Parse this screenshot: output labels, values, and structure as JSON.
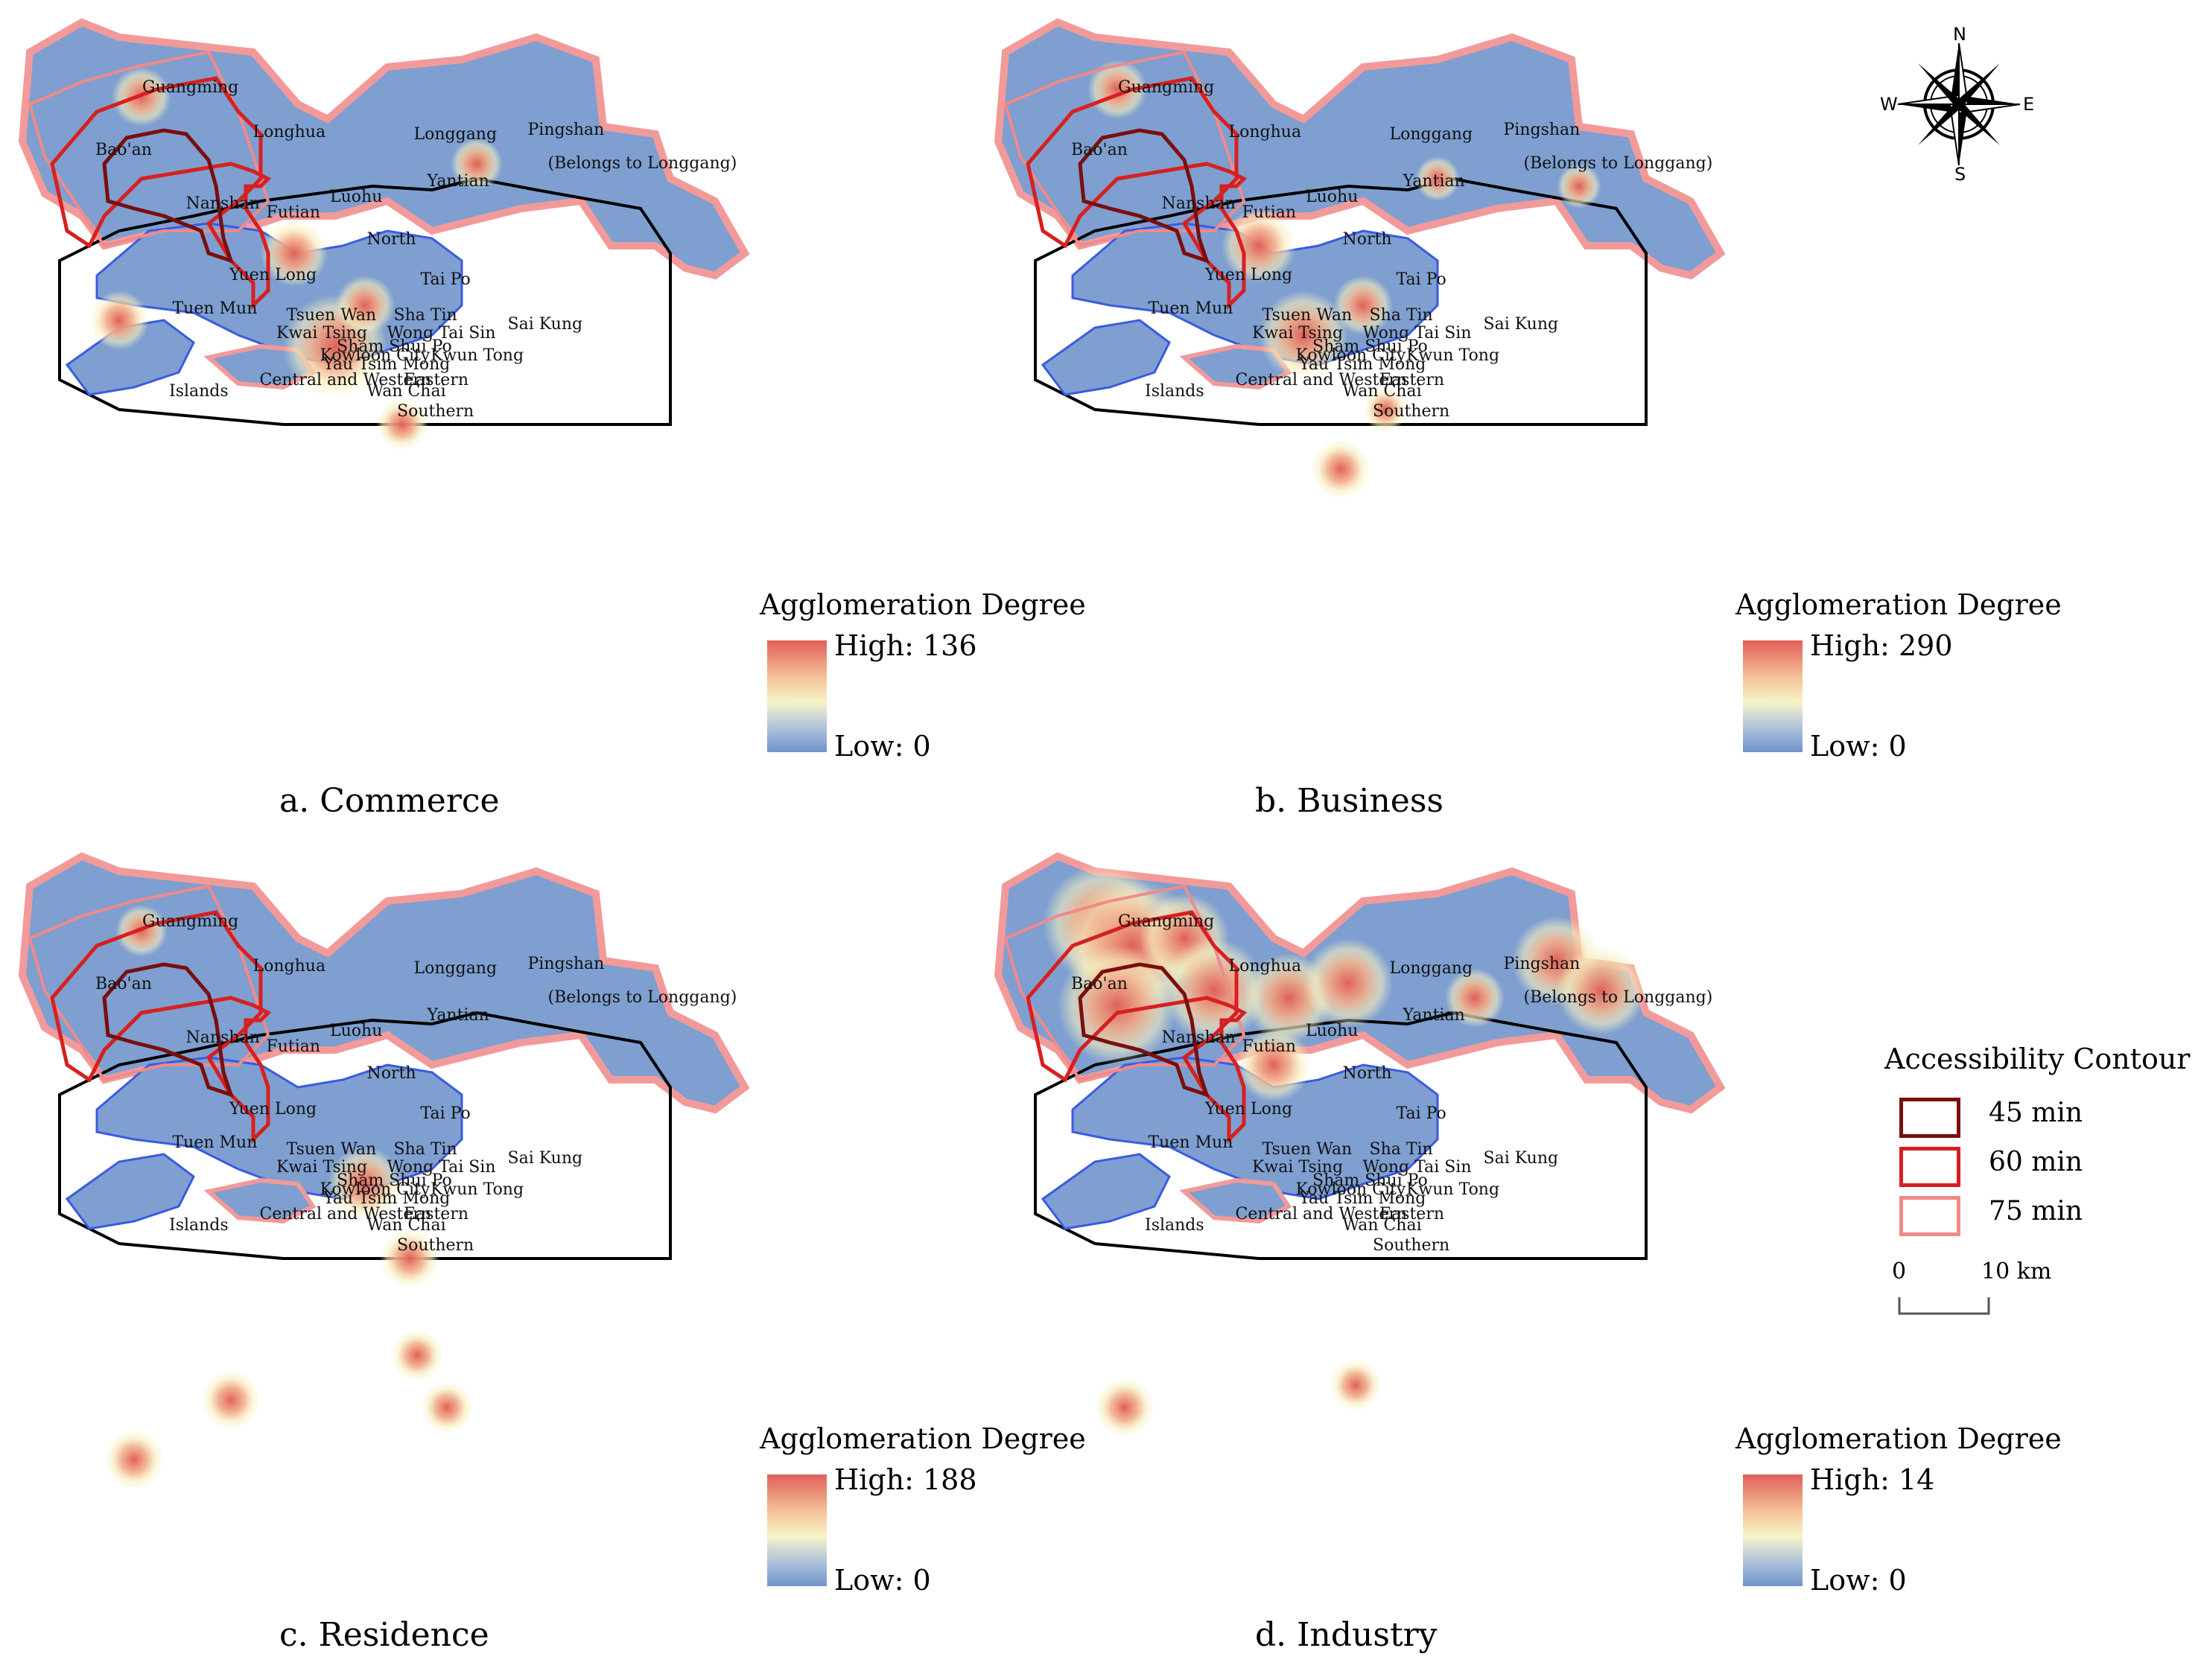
{
  "panels": [
    {
      "id": "a",
      "caption": "a. Commerce",
      "legend_title": "Agglomeration Degree",
      "high": "High: 136",
      "low": "Low: 0"
    },
    {
      "id": "b",
      "caption": "b. Business",
      "legend_title": "Agglomeration Degree",
      "high": "High: 290",
      "low": "Low: 0"
    },
    {
      "id": "c",
      "caption": "c. Residence",
      "legend_title": "Agglomeration Degree",
      "high": "High: 188",
      "low": "Low: 0"
    },
    {
      "id": "d",
      "caption": "d. Industry",
      "legend_title": "Agglomeration Degree",
      "high": "High: 14",
      "low": "Low: 0"
    }
  ],
  "place_labels": [
    "Guangming",
    "Bao'an",
    "Longhua",
    "Longgang",
    "Pingshan",
    "(Belongs to Longgang)",
    "Yantian",
    "Nanshan",
    "Futian",
    "Luohu",
    "North",
    "Yuen Long",
    "Tai Po",
    "Tuen Mun",
    "Tsuen Wan",
    "Sha Tin",
    "Kwai Tsing",
    "Wong Tai Sin",
    "Sai Kung",
    "Sham Shui Po",
    "Kowloon City",
    "Kwun Tong",
    "Yau Tsim Mong",
    "Central and Western",
    "Eastern",
    "Islands",
    "Wan Chai",
    "Southern"
  ],
  "compass": {
    "n": "N",
    "s": "S",
    "e": "E",
    "w": "W"
  },
  "access_legend": {
    "title": "Accessibility Contour",
    "items": [
      {
        "label": "45 min",
        "color": "#7a0e0e"
      },
      {
        "label": "60 min",
        "color": "#d81f1f"
      },
      {
        "label": "75 min",
        "color": "#f08a8a"
      }
    ]
  },
  "scale": {
    "zero": "0",
    "ten": "10 km"
  },
  "colors": {
    "land": "#7e9fd0",
    "sz_outline": "#f29a9a",
    "hk_outline": "#3a5be0",
    "boundary": "#000000",
    "hot": "#e0605a",
    "warm": "#f7f0c0"
  }
}
